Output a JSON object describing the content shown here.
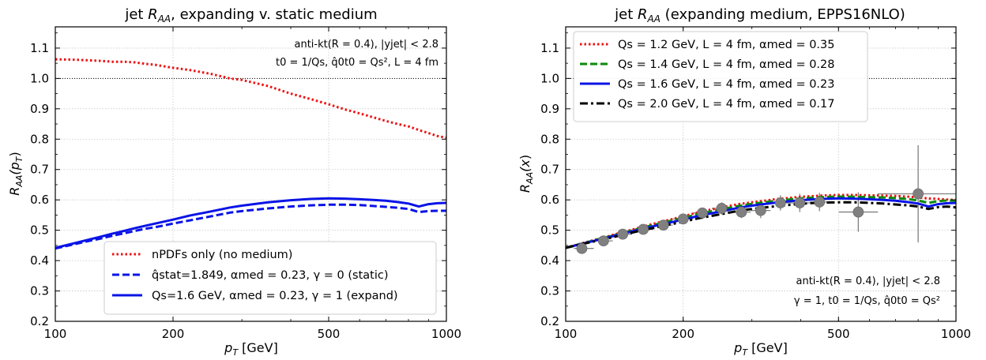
{
  "chart_data": [
    {
      "type": "line",
      "title_main": "jet ",
      "title_var": "R",
      "title_sub": "AA",
      "title_rest": ", expanding v. static medium",
      "xlabel_var": "p",
      "xlabel_sub": "T",
      "xlabel_unit": " [GeV]",
      "ylabel_var": "R",
      "ylabel_sub": "AA",
      "ylabel_arg": "(p",
      "ylabel_arg_sub": "T",
      "ylabel_close": ")",
      "xscale": "log",
      "xlim": [
        100,
        1000
      ],
      "ylim": [
        0.2,
        1.17
      ],
      "xticks": [
        100,
        200,
        500,
        1000
      ],
      "xtick_labels": [
        "100",
        "200",
        "500",
        "1000"
      ],
      "yticks": [
        0.2,
        0.3,
        0.4,
        0.5,
        0.6,
        0.7,
        0.8,
        0.9,
        1.0,
        1.1
      ],
      "ytick_labels": [
        "0.2",
        "0.3",
        "0.4",
        "0.5",
        "0.6",
        "0.7",
        "0.8",
        "0.9",
        "1.0",
        "1.1"
      ],
      "grid": true,
      "reference_line": 1.0,
      "annotations": [
        "anti-kt(R = 0.4), |yjet| < 2.8",
        "t0 = 1/Qs, q̂0t0 = Qs², L = 4 fm"
      ],
      "legend_position": "lower-center",
      "series": [
        {
          "name": "nPDFs only (no medium)",
          "color": "#ee1111",
          "style": "dotted",
          "x": [
            100,
            110,
            120,
            130,
            140,
            150,
            160,
            170,
            180,
            200,
            220,
            250,
            280,
            300,
            350,
            400,
            450,
            500,
            550,
            600,
            650,
            700,
            750,
            800,
            850,
            900,
            950,
            1000
          ],
          "y": [
            1.063,
            1.062,
            1.06,
            1.058,
            1.055,
            1.055,
            1.053,
            1.048,
            1.045,
            1.035,
            1.028,
            1.015,
            1.0,
            0.995,
            0.975,
            0.95,
            0.932,
            0.915,
            0.898,
            0.885,
            0.872,
            0.86,
            0.85,
            0.842,
            0.83,
            0.82,
            0.81,
            0.805
          ]
        },
        {
          "name": "q̂stat=1.849, αmed = 0.23, γ = 0 (static)",
          "color": "#0a14e6",
          "style": "dashed",
          "x": [
            100,
            110,
            120,
            130,
            140,
            150,
            160,
            170,
            180,
            200,
            220,
            250,
            280,
            300,
            350,
            400,
            450,
            500,
            550,
            600,
            650,
            700,
            750,
            800,
            850,
            900,
            950,
            1000
          ],
          "y": [
            0.44,
            0.452,
            0.463,
            0.472,
            0.482,
            0.49,
            0.498,
            0.505,
            0.51,
            0.522,
            0.532,
            0.546,
            0.558,
            0.563,
            0.572,
            0.578,
            0.582,
            0.584,
            0.584,
            0.583,
            0.58,
            0.577,
            0.574,
            0.57,
            0.56,
            0.563,
            0.564,
            0.564
          ]
        },
        {
          "name": "Qs=1.6 GeV, αmed = 0.23, γ = 1 (expand)",
          "color": "#0a14e6",
          "style": "solid",
          "x": [
            100,
            110,
            120,
            130,
            140,
            150,
            160,
            170,
            180,
            200,
            220,
            250,
            280,
            300,
            350,
            400,
            450,
            500,
            550,
            600,
            650,
            700,
            750,
            800,
            850,
            900,
            950,
            1000
          ],
          "y": [
            0.442,
            0.455,
            0.467,
            0.478,
            0.489,
            0.498,
            0.507,
            0.515,
            0.522,
            0.535,
            0.548,
            0.562,
            0.575,
            0.581,
            0.592,
            0.599,
            0.603,
            0.605,
            0.604,
            0.602,
            0.6,
            0.597,
            0.593,
            0.588,
            0.578,
            0.586,
            0.589,
            0.59
          ]
        }
      ]
    },
    {
      "type": "line",
      "title_main": "jet ",
      "title_var": "R",
      "title_sub": "AA",
      "title_rest": " (expanding medium, EPPS16NLO)",
      "xlabel_var": "p",
      "xlabel_sub": "T",
      "xlabel_unit": " [GeV]",
      "ylabel_var": "R",
      "ylabel_sub": "AA",
      "ylabel_arg": "(x",
      "ylabel_arg_sub": "",
      "ylabel_close": ")",
      "xscale": "log",
      "xlim": [
        100,
        1000
      ],
      "ylim": [
        0.2,
        1.17
      ],
      "xticks": [
        100,
        200,
        500,
        1000
      ],
      "xtick_labels": [
        "100",
        "200",
        "500",
        "1000"
      ],
      "yticks": [
        0.2,
        0.3,
        0.4,
        0.5,
        0.6,
        0.7,
        0.8,
        0.9,
        1.0,
        1.1
      ],
      "ytick_labels": [
        "0.2",
        "0.3",
        "0.4",
        "0.5",
        "0.6",
        "0.7",
        "0.8",
        "0.9",
        "1.0",
        "1.1"
      ],
      "grid": true,
      "reference_line": 1.0,
      "annotations": [
        "anti-kt(R = 0.4), |yjet| < 2.8",
        "γ = 1, t0 = 1/Qs, q̂0t0 = Qs²"
      ],
      "legend_position": "upper-left",
      "series": [
        {
          "name": "Qs = 1.2 GeV, L = 4 fm, αmed = 0.35",
          "color": "#ee1111",
          "style": "dotted",
          "x": [
            100,
            110,
            120,
            130,
            140,
            150,
            160,
            170,
            180,
            200,
            220,
            250,
            280,
            300,
            350,
            400,
            450,
            500,
            550,
            600,
            650,
            700,
            750,
            800,
            850,
            900,
            950,
            1000
          ],
          "y": [
            0.442,
            0.457,
            0.47,
            0.482,
            0.494,
            0.504,
            0.514,
            0.523,
            0.531,
            0.546,
            0.56,
            0.575,
            0.587,
            0.592,
            0.603,
            0.61,
            0.614,
            0.616,
            0.616,
            0.615,
            0.614,
            0.613,
            0.611,
            0.608,
            0.605,
            0.603,
            0.601,
            0.6
          ]
        },
        {
          "name": "Qs = 1.4 GeV, L = 4 fm, αmed = 0.28",
          "color": "#0a8a0a",
          "style": "dashed",
          "x": [
            100,
            110,
            120,
            130,
            140,
            150,
            160,
            170,
            180,
            200,
            220,
            250,
            280,
            300,
            350,
            400,
            450,
            500,
            550,
            600,
            650,
            700,
            750,
            800,
            850,
            900,
            950,
            1000
          ],
          "y": [
            0.442,
            0.456,
            0.469,
            0.48,
            0.491,
            0.501,
            0.511,
            0.519,
            0.527,
            0.541,
            0.554,
            0.569,
            0.581,
            0.587,
            0.598,
            0.605,
            0.609,
            0.611,
            0.61,
            0.609,
            0.608,
            0.606,
            0.603,
            0.598,
            0.59,
            0.596,
            0.598,
            0.598
          ]
        },
        {
          "name": "Qs = 1.6 GeV, L = 4 fm, αmed = 0.23",
          "color": "#0a14e6",
          "style": "solid",
          "x": [
            100,
            110,
            120,
            130,
            140,
            150,
            160,
            170,
            180,
            200,
            220,
            250,
            280,
            300,
            350,
            400,
            450,
            500,
            550,
            600,
            650,
            700,
            750,
            800,
            850,
            900,
            950,
            1000
          ],
          "y": [
            0.442,
            0.455,
            0.467,
            0.478,
            0.489,
            0.498,
            0.507,
            0.515,
            0.522,
            0.535,
            0.548,
            0.562,
            0.575,
            0.581,
            0.592,
            0.599,
            0.603,
            0.605,
            0.604,
            0.602,
            0.6,
            0.597,
            0.593,
            0.588,
            0.578,
            0.586,
            0.589,
            0.59
          ]
        },
        {
          "name": "Qs = 2.0 GeV, L = 4 fm, αmed = 0.17",
          "color": "#000000",
          "style": "dashdot",
          "x": [
            100,
            110,
            120,
            130,
            140,
            150,
            160,
            170,
            180,
            200,
            220,
            250,
            280,
            300,
            350,
            400,
            450,
            500,
            550,
            600,
            650,
            700,
            750,
            800,
            850,
            900,
            950,
            1000
          ],
          "y": [
            0.442,
            0.454,
            0.465,
            0.475,
            0.485,
            0.494,
            0.502,
            0.509,
            0.516,
            0.528,
            0.54,
            0.553,
            0.565,
            0.57,
            0.58,
            0.587,
            0.591,
            0.592,
            0.592,
            0.59,
            0.588,
            0.585,
            0.582,
            0.578,
            0.57,
            0.576,
            0.578,
            0.575
          ]
        }
      ],
      "data_points": {
        "name": "",
        "color": "#808080",
        "x": [
          110,
          125,
          140,
          158,
          178,
          200,
          224,
          251,
          282,
          316,
          355,
          398,
          447,
          562,
          800
        ],
        "y": [
          0.44,
          0.465,
          0.487,
          0.503,
          0.517,
          0.537,
          0.557,
          0.572,
          0.56,
          0.565,
          0.59,
          0.59,
          0.593,
          0.56,
          0.62
        ],
        "yerr": [
          0.01,
          0.01,
          0.01,
          0.01,
          0.01,
          0.012,
          0.015,
          0.02,
          0.02,
          0.025,
          0.025,
          0.03,
          0.03,
          0.065,
          0.16
        ],
        "x_lo": [
          105,
          118,
          132,
          148,
          168,
          188,
          212,
          237,
          266,
          298,
          335,
          376,
          422,
          501,
          630
        ],
        "x_hi": [
          118,
          132,
          148,
          168,
          188,
          212,
          237,
          266,
          298,
          335,
          376,
          422,
          473,
          631,
          1000
        ]
      }
    }
  ]
}
